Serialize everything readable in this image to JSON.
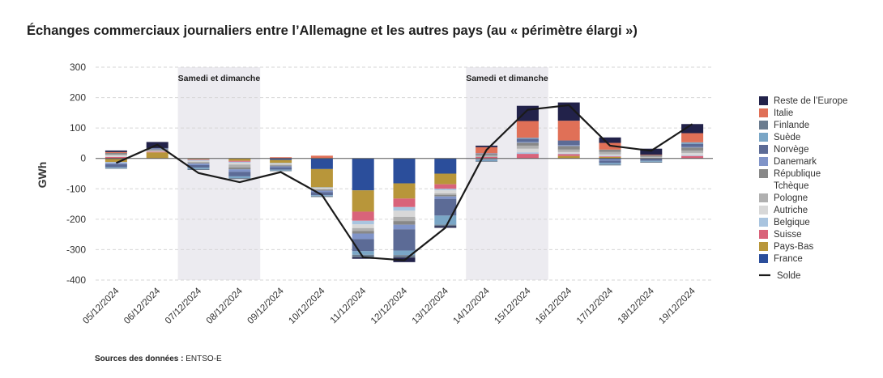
{
  "title": "Échanges commerciaux journaliers entre l’Allemagne et les autres pays (au « périmètre élargi »)",
  "source": {
    "label": "Sources des données :",
    "value": "ENTSO-E"
  },
  "chart_data": {
    "type": "bar",
    "stacked": true,
    "ylabel": "GWh",
    "ylim": [
      -400,
      300
    ],
    "yticks": [
      300,
      200,
      100,
      0,
      -100,
      -200,
      -300,
      -400
    ],
    "grid": "horizontal-dashed",
    "legend_position": "right",
    "categories": [
      "05/12/2024",
      "06/12/2024",
      "07/12/2024",
      "08/12/2024",
      "09/12/2024",
      "10/12/2024",
      "11/12/2024",
      "12/12/2024",
      "13/12/2024",
      "14/12/2024",
      "15/12/2024",
      "16/12/2024",
      "17/12/2024",
      "18/12/2024",
      "19/12/2024"
    ],
    "shaded_ranges": [
      {
        "label": "Samedi et dimanche",
        "from": "07/12/2024",
        "to": "08/12/2024"
      },
      {
        "label": "Samedi et dimanche",
        "from": "14/12/2024",
        "to": "15/12/2024"
      }
    ],
    "series": [
      {
        "name": "France",
        "color": "#2b4e9b",
        "values": [
          -2,
          0,
          0,
          0,
          -5,
          -35,
          -105,
          -82,
          -50,
          0,
          0,
          0,
          -3,
          0,
          0
        ]
      },
      {
        "name": "Pays-Bas",
        "color": "#b8963a",
        "values": [
          -10,
          20,
          -3,
          -8,
          -10,
          -60,
          -70,
          -50,
          -35,
          0,
          0,
          8,
          5,
          0,
          0
        ]
      },
      {
        "name": "Suisse",
        "color": "#d9637a",
        "values": [
          5,
          2,
          -2,
          -3,
          2,
          1,
          -30,
          -28,
          -15,
          5,
          15,
          6,
          2,
          1,
          8
        ]
      },
      {
        "name": "Belgique",
        "color": "#a9c4df",
        "values": [
          -3,
          0,
          -3,
          -3,
          -2,
          -2,
          -12,
          -12,
          -5,
          0,
          5,
          2,
          2,
          0,
          2
        ]
      },
      {
        "name": "Autriche",
        "color": "#d8d8d8",
        "values": [
          5,
          2,
          -3,
          -6,
          -3,
          -3,
          -12,
          -20,
          -10,
          -3,
          12,
          5,
          4,
          2,
          8
        ]
      },
      {
        "name": "Pologne",
        "color": "#b0b0b0",
        "values": [
          3,
          3,
          -4,
          -10,
          -3,
          -3,
          -10,
          -14,
          -5,
          5,
          10,
          8,
          8,
          3,
          8
        ]
      },
      {
        "name": "République Tchèque",
        "color": "#888888",
        "values": [
          5,
          3,
          -2,
          -6,
          -3,
          -3,
          -8,
          -12,
          -5,
          5,
          10,
          12,
          8,
          4,
          10
        ]
      },
      {
        "name": "Danemark",
        "color": "#8094c8",
        "values": [
          -4,
          2,
          -5,
          -8,
          -3,
          -5,
          -18,
          -15,
          -8,
          2,
          3,
          3,
          -4,
          0,
          2
        ]
      },
      {
        "name": "Norvège",
        "color": "#5c6b96",
        "values": [
          -10,
          2,
          -8,
          -15,
          -8,
          -10,
          -40,
          -70,
          -55,
          -2,
          10,
          15,
          -8,
          -8,
          10
        ]
      },
      {
        "name": "Suède",
        "color": "#7aa6c6",
        "values": [
          -3,
          0,
          -5,
          -6,
          -3,
          -3,
          -12,
          -15,
          -30,
          -4,
          3,
          0,
          -5,
          -3,
          5
        ]
      },
      {
        "name": "Finlande",
        "color": "#6b7c8f",
        "values": [
          -2,
          0,
          -3,
          -3,
          -2,
          -3,
          -8,
          -8,
          -5,
          -2,
          0,
          0,
          -3,
          -3,
          0
        ]
      },
      {
        "name": "Italie",
        "color": "#e07057",
        "values": [
          3,
          0,
          0,
          0,
          2,
          8,
          0,
          0,
          0,
          20,
          55,
          65,
          22,
          2,
          30
        ]
      },
      {
        "name": "Reste de l’Europe",
        "color": "#22224a",
        "values": [
          5,
          20,
          0,
          0,
          0,
          0,
          -5,
          -15,
          -5,
          5,
          50,
          60,
          18,
          20,
          30
        ]
      }
    ],
    "solde": {
      "name": "Solde",
      "color": "#1a1a1a",
      "values": [
        -15,
        45,
        -48,
        -78,
        -45,
        -120,
        -325,
        -335,
        -228,
        28,
        160,
        175,
        42,
        25,
        113
      ]
    }
  }
}
